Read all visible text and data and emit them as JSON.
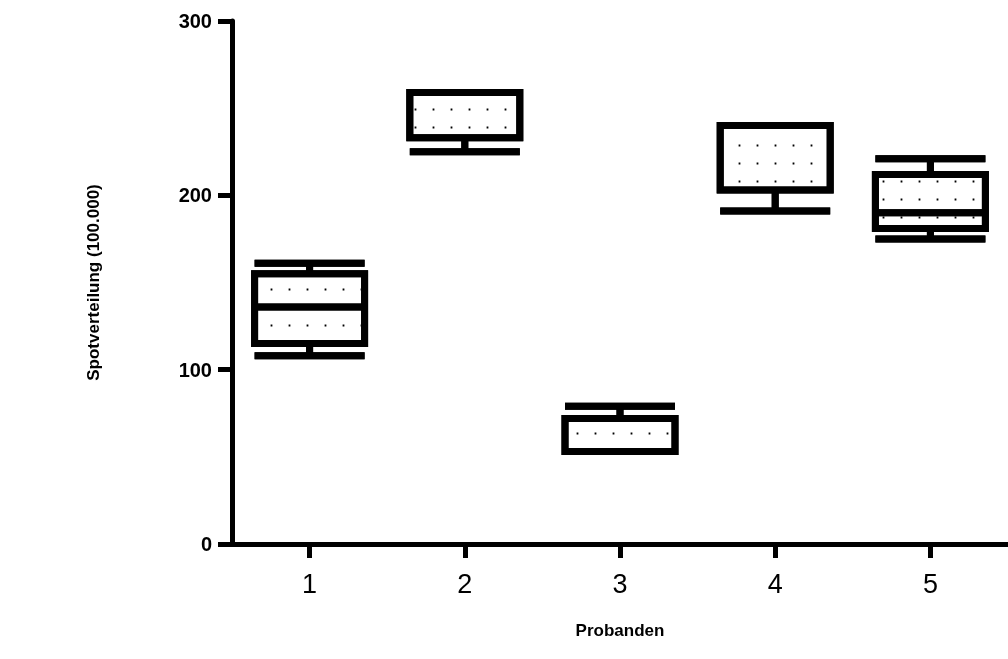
{
  "chart_data": {
    "type": "box",
    "xlabel": "Probanden",
    "ylabel": "Spotverteilung (100.000)",
    "categories": [
      "1",
      "2",
      "3",
      "4",
      "5"
    ],
    "color": "#000000",
    "boxes": [
      {
        "low": 108,
        "q1": 115,
        "median": 136,
        "q3": 155,
        "high": 161
      },
      {
        "low": 225,
        "q1": 233,
        "median": 259,
        "q3": 259,
        "high": 259
      },
      {
        "low": 53,
        "q1": 53,
        "median": 53,
        "q3": 72,
        "high": 79
      },
      {
        "low": 191,
        "q1": 203,
        "median": 203,
        "q3": 240,
        "high": 240
      },
      {
        "low": 175,
        "q1": 181,
        "median": 190,
        "q3": 212,
        "high": 221
      }
    ],
    "ylim": [
      0,
      300
    ],
    "yticks": [
      0,
      100,
      200,
      300
    ],
    "grid": false
  }
}
